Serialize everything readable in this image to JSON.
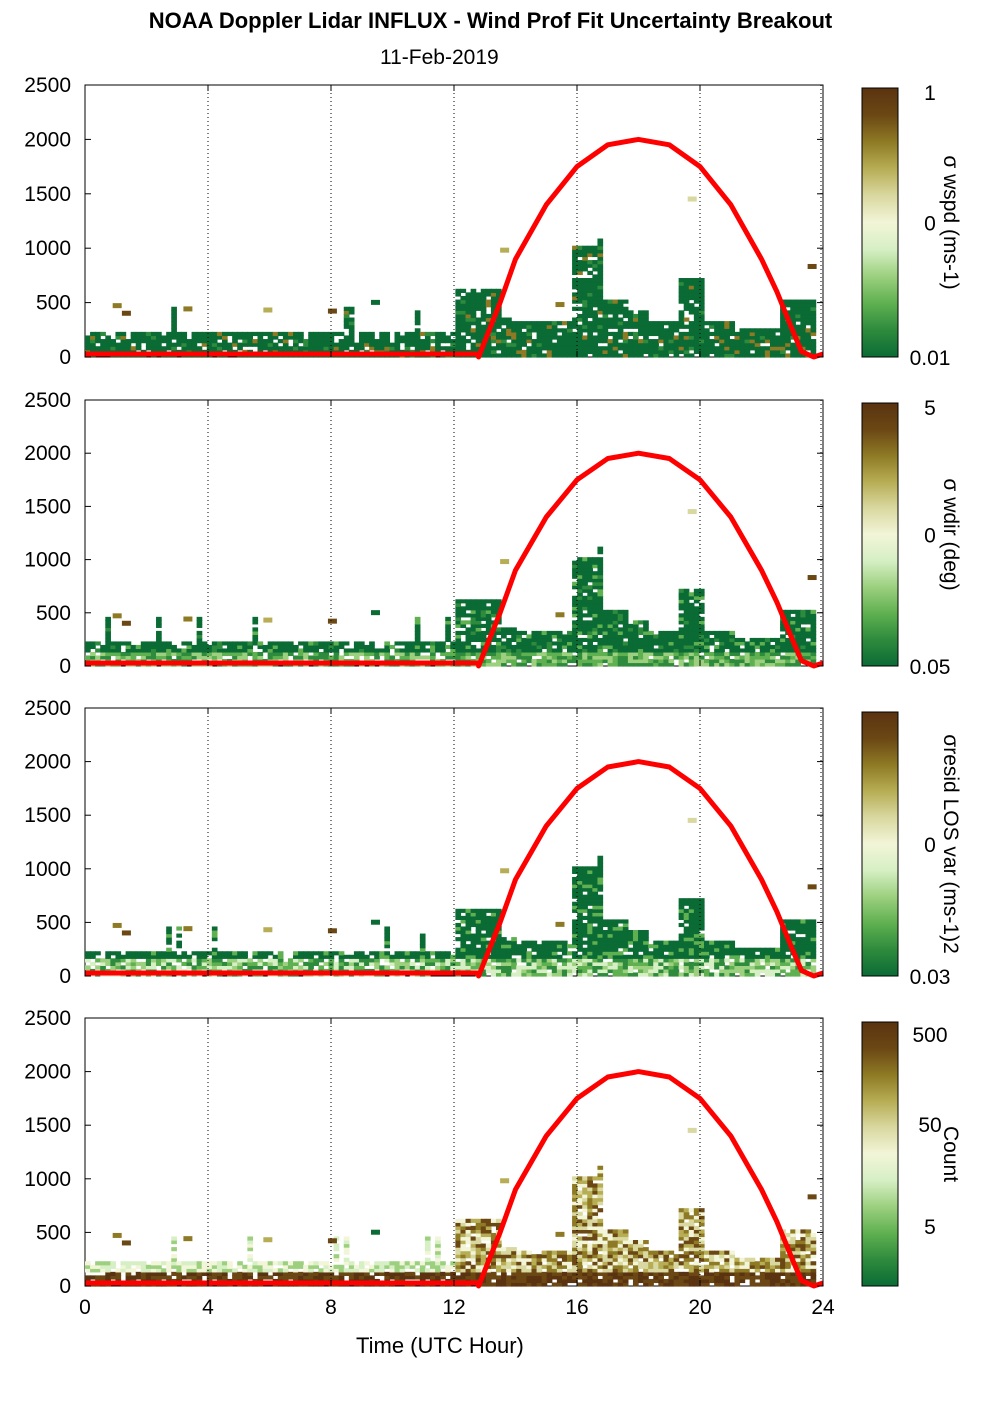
{
  "header": {
    "title": "NOAA Doppler Lidar INFLUX - Wind Prof Fit Uncertainty Breakout",
    "date": "11-Feb-2019"
  },
  "colors": {
    "curve": "#ff0000",
    "colormap": [
      "#0b6b35",
      "#2e8b3d",
      "#5fb050",
      "#9cd07f",
      "#d6efc4",
      "#f2f5d8",
      "#d9d8a0",
      "#b7ad55",
      "#8e7a25",
      "#6b4714",
      "#5a3310"
    ]
  },
  "chart_data": [
    {
      "type": "heatmap",
      "ylabel": "",
      "xlabel": "",
      "xlim": [
        0,
        24
      ],
      "ylim": [
        0,
        2500
      ],
      "xticks": [
        0,
        4,
        8,
        12,
        16,
        20,
        24
      ],
      "yticks": [
        0,
        500,
        1000,
        1500,
        2000,
        2500
      ],
      "grid_x": "dotted vertical lines at 4-hour intervals",
      "colorbar": {
        "label": "σ wspd (ms-1)",
        "ticks": [
          "1",
          "0",
          "0.01"
        ]
      },
      "overlay_curve": {
        "x": [
          12.8,
          13.5,
          14,
          15,
          16,
          17,
          18,
          19,
          20,
          21,
          22,
          22.5,
          23,
          23.3,
          23.7
        ],
        "y": [
          0,
          500,
          900,
          1400,
          1750,
          1950,
          2000,
          1950,
          1750,
          1400,
          900,
          600,
          250,
          50,
          0
        ]
      }
    },
    {
      "type": "heatmap",
      "xlim": [
        0,
        24
      ],
      "ylim": [
        0,
        2500
      ],
      "xticks": [
        0,
        4,
        8,
        12,
        16,
        20,
        24
      ],
      "yticks": [
        0,
        500,
        1000,
        1500,
        2000,
        2500
      ],
      "colorbar": {
        "label": "σ wdir (deg)",
        "ticks": [
          "5",
          "0",
          "0.05"
        ]
      }
    },
    {
      "type": "heatmap",
      "xlim": [
        0,
        24
      ],
      "ylim": [
        0,
        2500
      ],
      "xticks": [
        0,
        4,
        8,
        12,
        16,
        20,
        24
      ],
      "yticks": [
        0,
        500,
        1000,
        1500,
        2000,
        2500
      ],
      "colorbar": {
        "label": "σresid LOS var (ms-1)2",
        "ticks": [
          "0",
          "0.03"
        ]
      }
    },
    {
      "type": "heatmap",
      "xlabel": "Time (UTC Hour)",
      "xlim": [
        0,
        24
      ],
      "ylim": [
        0,
        2500
      ],
      "xticks": [
        0,
        4,
        8,
        12,
        16,
        20,
        24
      ],
      "yticks": [
        0,
        500,
        1000,
        1500,
        2000,
        2500
      ],
      "colorbar": {
        "label": "Count",
        "ticks": [
          "500",
          "50",
          "5"
        ]
      }
    }
  ],
  "axes": {
    "xticklabels": [
      "0",
      "4",
      "8",
      "12",
      "16",
      "20",
      "24"
    ],
    "yticklabels": [
      "0",
      "500",
      "1000",
      "1500",
      "2000",
      "2500"
    ],
    "xlabel": "Time (UTC Hour)"
  }
}
